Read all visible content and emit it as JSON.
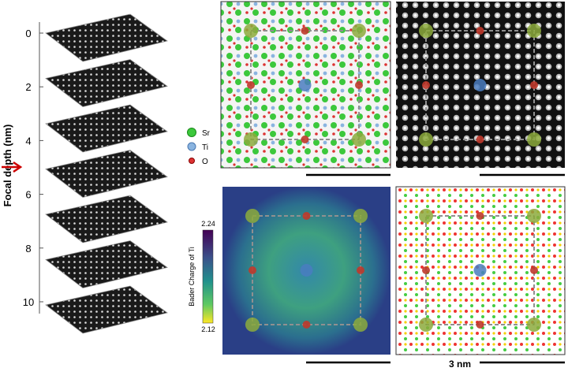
{
  "axis": {
    "label": "Focal depth  (nm)",
    "ticks": [
      0,
      2,
      4,
      6,
      8,
      10
    ]
  },
  "legend": [
    "Sr",
    "Ti",
    "O"
  ],
  "colorbar": {
    "label": "Bader Charge of Ti",
    "max": 2.24,
    "min": 2.12
  },
  "scale_bar": "3 nm"
}
